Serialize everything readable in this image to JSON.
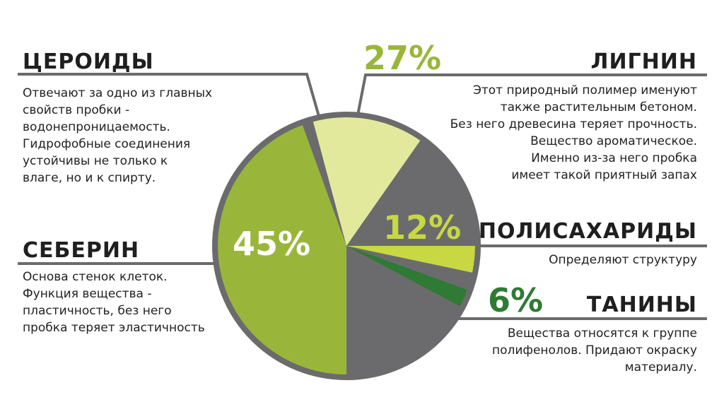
{
  "colors": {
    "green": "#9ab63a",
    "light_green": "#e3e99c",
    "yellow_green": "#c8d843",
    "dark_green": "#2f7a35",
    "gray": "#6b6b6d",
    "white_text": "#ffffff"
  },
  "blocks": {
    "ceroidy": {
      "title": "ЦЕРОИДЫ",
      "desc": "Отвечают за одно из главных\nсвойств пробки -\nводонепроницаемость.\nГидрофобные соединения\nустойчивы не только к\nвлаге, но и к спирту."
    },
    "seberin": {
      "title": "СЕБЕРИН",
      "desc": "Основа стенок клеток.\nФункция вещества -\nпластичность, без него\nпробка теряет эластичность"
    },
    "lignin": {
      "title": "ЛИГНИН",
      "desc": "Этот природный полимер именуют\nтакже растительным бетоном.\nБез него древесина теряет прочность.\nВещество ароматическое.\nИменно из-за него пробка\nимеет такой приятный запах"
    },
    "polisaharidy": {
      "title": "ПОЛИСАХАРИДЫ",
      "desc": "Определяют структуру"
    },
    "taniny": {
      "title": "ТАНИНЫ",
      "desc": "Вещества относятся к группе\nполифенолов. Придают окраску\nматериалу."
    }
  },
  "chart_data": {
    "type": "pie",
    "slices": [
      {
        "name": "СЕБЕРИН",
        "label": "45%",
        "value": 45,
        "color": "#9ab63a"
      },
      {
        "name": "ЦЕРОИДЫ",
        "label": "",
        "value": 10,
        "color": "#e3e99c"
      },
      {
        "name": "ЛИГНИН",
        "label": "27%",
        "value": 27,
        "color": "#6b6b6d"
      },
      {
        "name": "ПОЛИСАХАРИДЫ",
        "label": "12%",
        "value": 12,
        "color": "#c8d843"
      },
      {
        "name": "ТАНИНЫ",
        "label": "6%",
        "value": 6,
        "color": "#2f7a35"
      }
    ],
    "labels": {
      "seberin": "45%",
      "lignin": "27%",
      "polisaharidy": "12%",
      "taniny": "6%"
    }
  }
}
